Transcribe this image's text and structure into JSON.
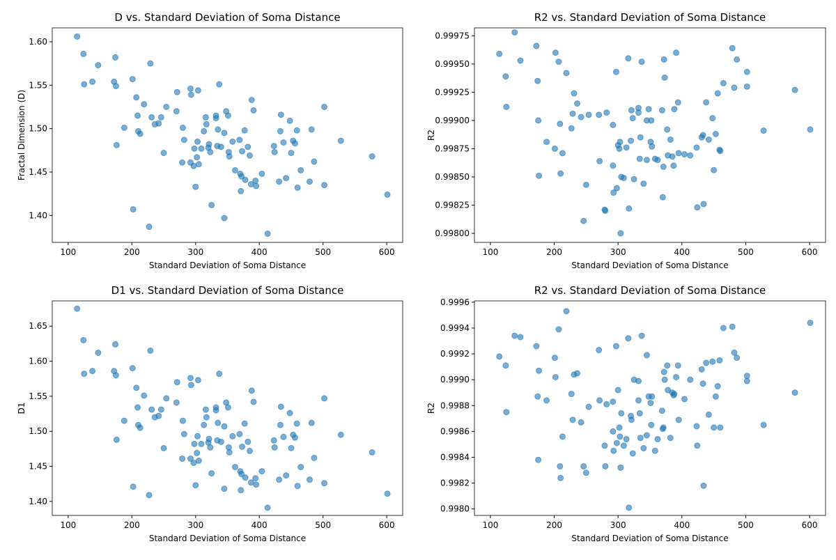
{
  "chart_data": [
    {
      "type": "scatter",
      "title": "D vs. Standard Deviation of Soma Distance",
      "x_label": "Standard Deviation of Soma Distance",
      "y_label": "Fractal Dimension (D)",
      "color": "#1f77b4",
      "xlim": [
        75,
        625
      ],
      "xticks": [
        100,
        200,
        300,
        400,
        500,
        600
      ],
      "ylim": [
        1.369,
        1.616
      ],
      "yticks": [
        {
          "value": 1.4,
          "label": "1.40"
        },
        1.45,
        {
          "value": 1.5,
          "label": "1.50"
        },
        1.55,
        {
          "value": 1.6,
          "label": "1.60"
        }
      ],
      "x": [
        114,
        124,
        125,
        138,
        147,
        172,
        174,
        175,
        176,
        188,
        201,
        202,
        207,
        209,
        210,
        213,
        219,
        227,
        229,
        231,
        236,
        242,
        246,
        250,
        254,
        270,
        271,
        279,
        280,
        282,
        292,
        292,
        293,
        297,
        298,
        300,
        302,
        303,
        304,
        305,
        309,
        313,
        316,
        317,
        320,
        321,
        323,
        325,
        332,
        332,
        334,
        335,
        337,
        340,
        345,
        345,
        348,
        351,
        352,
        353,
        358,
        362,
        369,
        370,
        371,
        372,
        373,
        377,
        378,
        382,
        385,
        387,
        388,
        391,
        394,
        395,
        404,
        413,
        423,
        424,
        431,
        433,
        434,
        438,
        442,
        448,
        450,
        453,
        456,
        459,
        460,
        465,
        479,
        482,
        486,
        502,
        502,
        528,
        577,
        601
      ],
      "values": [
        1.606,
        1.586,
        1.551,
        1.554,
        1.573,
        1.554,
        1.582,
        1.549,
        1.481,
        1.501,
        1.557,
        1.407,
        1.536,
        1.515,
        1.497,
        1.494,
        1.528,
        1.387,
        1.575,
        1.513,
        1.505,
        1.506,
        1.513,
        1.472,
        1.525,
        1.52,
        1.542,
        1.461,
        1.501,
        1.487,
        1.546,
        1.461,
        1.539,
        1.457,
        1.477,
        1.433,
        1.467,
        1.485,
        1.544,
        1.459,
        1.477,
        1.497,
        1.513,
        1.505,
        1.478,
        1.482,
        1.473,
        1.412,
        1.515,
        1.512,
        1.48,
        1.499,
        1.551,
        1.479,
        1.397,
        1.495,
        1.52,
        1.515,
        1.473,
        1.468,
        1.485,
        1.452,
        1.487,
        1.448,
        1.428,
        1.445,
        1.474,
        1.498,
        1.441,
        1.479,
        1.469,
        1.436,
        1.533,
        1.521,
        1.44,
        1.434,
        1.448,
        1.379,
        1.48,
        1.473,
        1.439,
        1.497,
        1.516,
        1.484,
        1.443,
        1.509,
        1.472,
        1.486,
        1.483,
        1.498,
        1.432,
        1.452,
        1.439,
        1.499,
        1.462,
        1.435,
        1.525,
        1.486,
        1.468,
        1.424
      ]
    },
    {
      "type": "scatter",
      "title": "R2 vs. Standard Deviation of Soma Distance",
      "x_label": "Standard Deviation of Soma Distance",
      "y_label": "R2",
      "color": "#1f77b4",
      "xlim": [
        75,
        625
      ],
      "xticks": [
        100,
        200,
        300,
        400,
        500,
        600
      ],
      "ylim": [
        0.99792,
        0.99982
      ],
      "yticks": [
        {
          "value": 0.998,
          "label": "0.99800"
        },
        0.99825,
        {
          "value": 0.9985,
          "label": "0.99850"
        },
        0.99875,
        {
          "value": 0.999,
          "label": "0.99900"
        },
        0.99925,
        {
          "value": 0.9995,
          "label": "0.99950"
        },
        0.99975
      ],
      "x": [
        114,
        124,
        125,
        138,
        147,
        172,
        174,
        175,
        176,
        188,
        201,
        202,
        207,
        209,
        210,
        213,
        219,
        227,
        229,
        231,
        236,
        242,
        246,
        250,
        254,
        270,
        271,
        279,
        280,
        282,
        292,
        292,
        293,
        297,
        298,
        300,
        302,
        303,
        304,
        305,
        309,
        313,
        316,
        317,
        320,
        321,
        323,
        325,
        332,
        332,
        334,
        335,
        337,
        340,
        345,
        345,
        348,
        351,
        352,
        353,
        358,
        362,
        369,
        370,
        371,
        372,
        373,
        377,
        378,
        382,
        385,
        387,
        388,
        391,
        394,
        395,
        404,
        413,
        423,
        424,
        431,
        433,
        434,
        438,
        442,
        448,
        450,
        453,
        456,
        459,
        460,
        465,
        479,
        482,
        486,
        502,
        502,
        528,
        577,
        601
      ],
      "values": [
        0.99959,
        0.99939,
        0.99912,
        0.99978,
        0.99953,
        0.99966,
        0.99935,
        0.999,
        0.99851,
        0.99881,
        0.99875,
        0.9996,
        0.99952,
        0.99897,
        0.99853,
        0.99871,
        0.99942,
        0.99893,
        0.99906,
        0.99924,
        0.99915,
        0.99903,
        0.99811,
        0.99843,
        0.99905,
        0.99905,
        0.99864,
        0.99821,
        0.9982,
        0.99907,
        0.99896,
        0.9986,
        0.99836,
        0.99943,
        0.9984,
        0.99878,
        0.99875,
        0.99881,
        0.998,
        0.9985,
        0.99849,
        0.99876,
        0.99955,
        0.99822,
        0.99882,
        0.99909,
        0.99902,
        0.99848,
        0.99911,
        0.99907,
        0.99866,
        0.99885,
        0.99952,
        0.99844,
        0.99865,
        0.999,
        0.9991,
        0.99881,
        0.999,
        0.99877,
        0.99866,
        0.99865,
        0.99909,
        0.99832,
        0.99859,
        0.99954,
        0.99938,
        0.99892,
        0.99869,
        0.99883,
        0.99868,
        0.9986,
        0.9991,
        0.9996,
        0.99916,
        0.99871,
        0.9987,
        0.99869,
        0.99876,
        0.99823,
        0.99885,
        0.99887,
        0.99826,
        0.99916,
        0.99883,
        0.99902,
        0.99856,
        0.99888,
        0.99924,
        0.99874,
        0.99873,
        0.99933,
        0.99964,
        0.99929,
        0.99954,
        0.99943,
        0.9993,
        0.99891,
        0.99927,
        0.99892
      ]
    },
    {
      "type": "scatter",
      "title": "D1 vs. Standard Deviation of Soma Distance",
      "x_label": "Standard Deviation of Soma Distance",
      "y_label": "D1",
      "color": "#1f77b4",
      "xlim": [
        75,
        625
      ],
      "xticks": [
        100,
        200,
        300,
        400,
        500,
        600
      ],
      "ylim": [
        1.38,
        1.686
      ],
      "yticks": [
        {
          "value": 1.4,
          "label": "1.40"
        },
        1.45,
        {
          "value": 1.5,
          "label": "1.50"
        },
        1.55,
        {
          "value": 1.6,
          "label": "1.60"
        },
        1.65
      ],
      "x": [
        114,
        124,
        125,
        138,
        147,
        172,
        174,
        175,
        176,
        188,
        201,
        202,
        207,
        209,
        210,
        213,
        219,
        227,
        229,
        231,
        236,
        242,
        246,
        250,
        254,
        270,
        271,
        279,
        280,
        282,
        292,
        292,
        293,
        297,
        298,
        300,
        302,
        303,
        304,
        305,
        309,
        313,
        316,
        317,
        320,
        321,
        323,
        325,
        332,
        332,
        334,
        335,
        337,
        340,
        345,
        345,
        348,
        351,
        352,
        353,
        358,
        362,
        369,
        370,
        371,
        372,
        373,
        377,
        378,
        382,
        385,
        387,
        388,
        391,
        394,
        395,
        404,
        413,
        423,
        424,
        431,
        433,
        434,
        438,
        442,
        448,
        450,
        453,
        456,
        459,
        460,
        465,
        479,
        482,
        486,
        502,
        502,
        528,
        577,
        601
      ],
      "values": [
        1.675,
        1.63,
        1.582,
        1.586,
        1.612,
        1.586,
        1.624,
        1.58,
        1.488,
        1.515,
        1.59,
        1.421,
        1.562,
        1.534,
        1.509,
        1.505,
        1.551,
        1.409,
        1.615,
        1.531,
        1.52,
        1.522,
        1.531,
        1.476,
        1.547,
        1.541,
        1.57,
        1.461,
        1.515,
        1.496,
        1.576,
        1.461,
        1.566,
        1.455,
        1.482,
        1.423,
        1.469,
        1.493,
        1.573,
        1.458,
        1.482,
        1.509,
        1.531,
        1.52,
        1.484,
        1.489,
        1.477,
        1.44,
        1.534,
        1.53,
        1.487,
        1.512,
        1.582,
        1.485,
        1.418,
        1.507,
        1.541,
        1.534,
        1.477,
        1.47,
        1.493,
        1.449,
        1.496,
        1.443,
        1.416,
        1.439,
        1.478,
        1.511,
        1.434,
        1.485,
        1.472,
        1.427,
        1.558,
        1.542,
        1.433,
        1.424,
        1.443,
        1.391,
        1.487,
        1.477,
        1.431,
        1.509,
        1.535,
        1.492,
        1.437,
        1.526,
        1.476,
        1.495,
        1.491,
        1.511,
        1.422,
        1.449,
        1.431,
        1.512,
        1.462,
        1.426,
        1.547,
        1.495,
        1.47,
        1.411
      ]
    },
    {
      "type": "scatter",
      "title": "R2 vs. Standard Deviation of Soma Distance",
      "x_label": "Standard Deviation of Soma Distance",
      "y_label": "R2",
      "color": "#1f77b4",
      "xlim": [
        75,
        625
      ],
      "xticks": [
        100,
        200,
        300,
        400,
        500,
        600
      ],
      "ylim": [
        0.99795,
        0.99961
      ],
      "yticks": [
        {
          "value": 0.998,
          "label": "0.9980"
        },
        0.9982,
        0.9984,
        0.9986,
        0.9988,
        {
          "value": 0.999,
          "label": "0.9990"
        },
        0.9992,
        0.9994,
        0.9996
      ],
      "x": [
        114,
        124,
        125,
        138,
        147,
        172,
        174,
        175,
        176,
        188,
        201,
        202,
        207,
        209,
        210,
        213,
        219,
        227,
        229,
        231,
        236,
        242,
        246,
        250,
        254,
        270,
        271,
        279,
        280,
        282,
        292,
        292,
        293,
        297,
        298,
        300,
        302,
        303,
        304,
        305,
        309,
        313,
        316,
        317,
        320,
        321,
        323,
        325,
        332,
        332,
        334,
        335,
        337,
        340,
        345,
        345,
        348,
        351,
        352,
        353,
        358,
        362,
        369,
        370,
        371,
        372,
        373,
        377,
        378,
        382,
        385,
        387,
        388,
        391,
        394,
        395,
        404,
        413,
        423,
        424,
        431,
        433,
        434,
        438,
        442,
        448,
        450,
        453,
        456,
        459,
        460,
        465,
        479,
        482,
        486,
        502,
        502,
        528,
        577,
        601
      ],
      "values": [
        0.99918,
        0.99911,
        0.99875,
        0.99934,
        0.99933,
        0.99926,
        0.99887,
        0.99838,
        0.99907,
        0.99884,
        0.99917,
        0.99902,
        0.99939,
        0.99833,
        0.99824,
        0.99856,
        0.99953,
        0.99889,
        0.99869,
        0.99904,
        0.99905,
        0.99867,
        0.99833,
        0.99828,
        0.99879,
        0.99923,
        0.99884,
        0.99849,
        0.99833,
        0.99881,
        0.99883,
        0.9986,
        0.99845,
        0.99926,
        0.99851,
        0.99892,
        0.99863,
        0.99856,
        0.99832,
        0.99874,
        0.99849,
        0.99854,
        0.99932,
        0.99801,
        0.99872,
        0.99869,
        0.99843,
        0.999,
        0.99899,
        0.99884,
        0.99874,
        0.99855,
        0.99934,
        0.99847,
        0.99919,
        0.99857,
        0.99887,
        0.99882,
        0.99865,
        0.99887,
        0.99845,
        0.99854,
        0.99876,
        0.99862,
        0.99863,
        0.99906,
        0.999,
        0.99911,
        0.99892,
        0.99855,
        0.9989,
        0.99888,
        0.99889,
        0.99902,
        0.99911,
        0.99869,
        0.99885,
        0.999,
        0.99864,
        0.99849,
        0.99908,
        0.99897,
        0.99818,
        0.99913,
        0.99873,
        0.99914,
        0.99863,
        0.99887,
        0.99895,
        0.99915,
        0.99863,
        0.9994,
        0.99941,
        0.99921,
        0.99917,
        0.99903,
        0.99899,
        0.99865,
        0.9989,
        0.99944
      ]
    }
  ]
}
